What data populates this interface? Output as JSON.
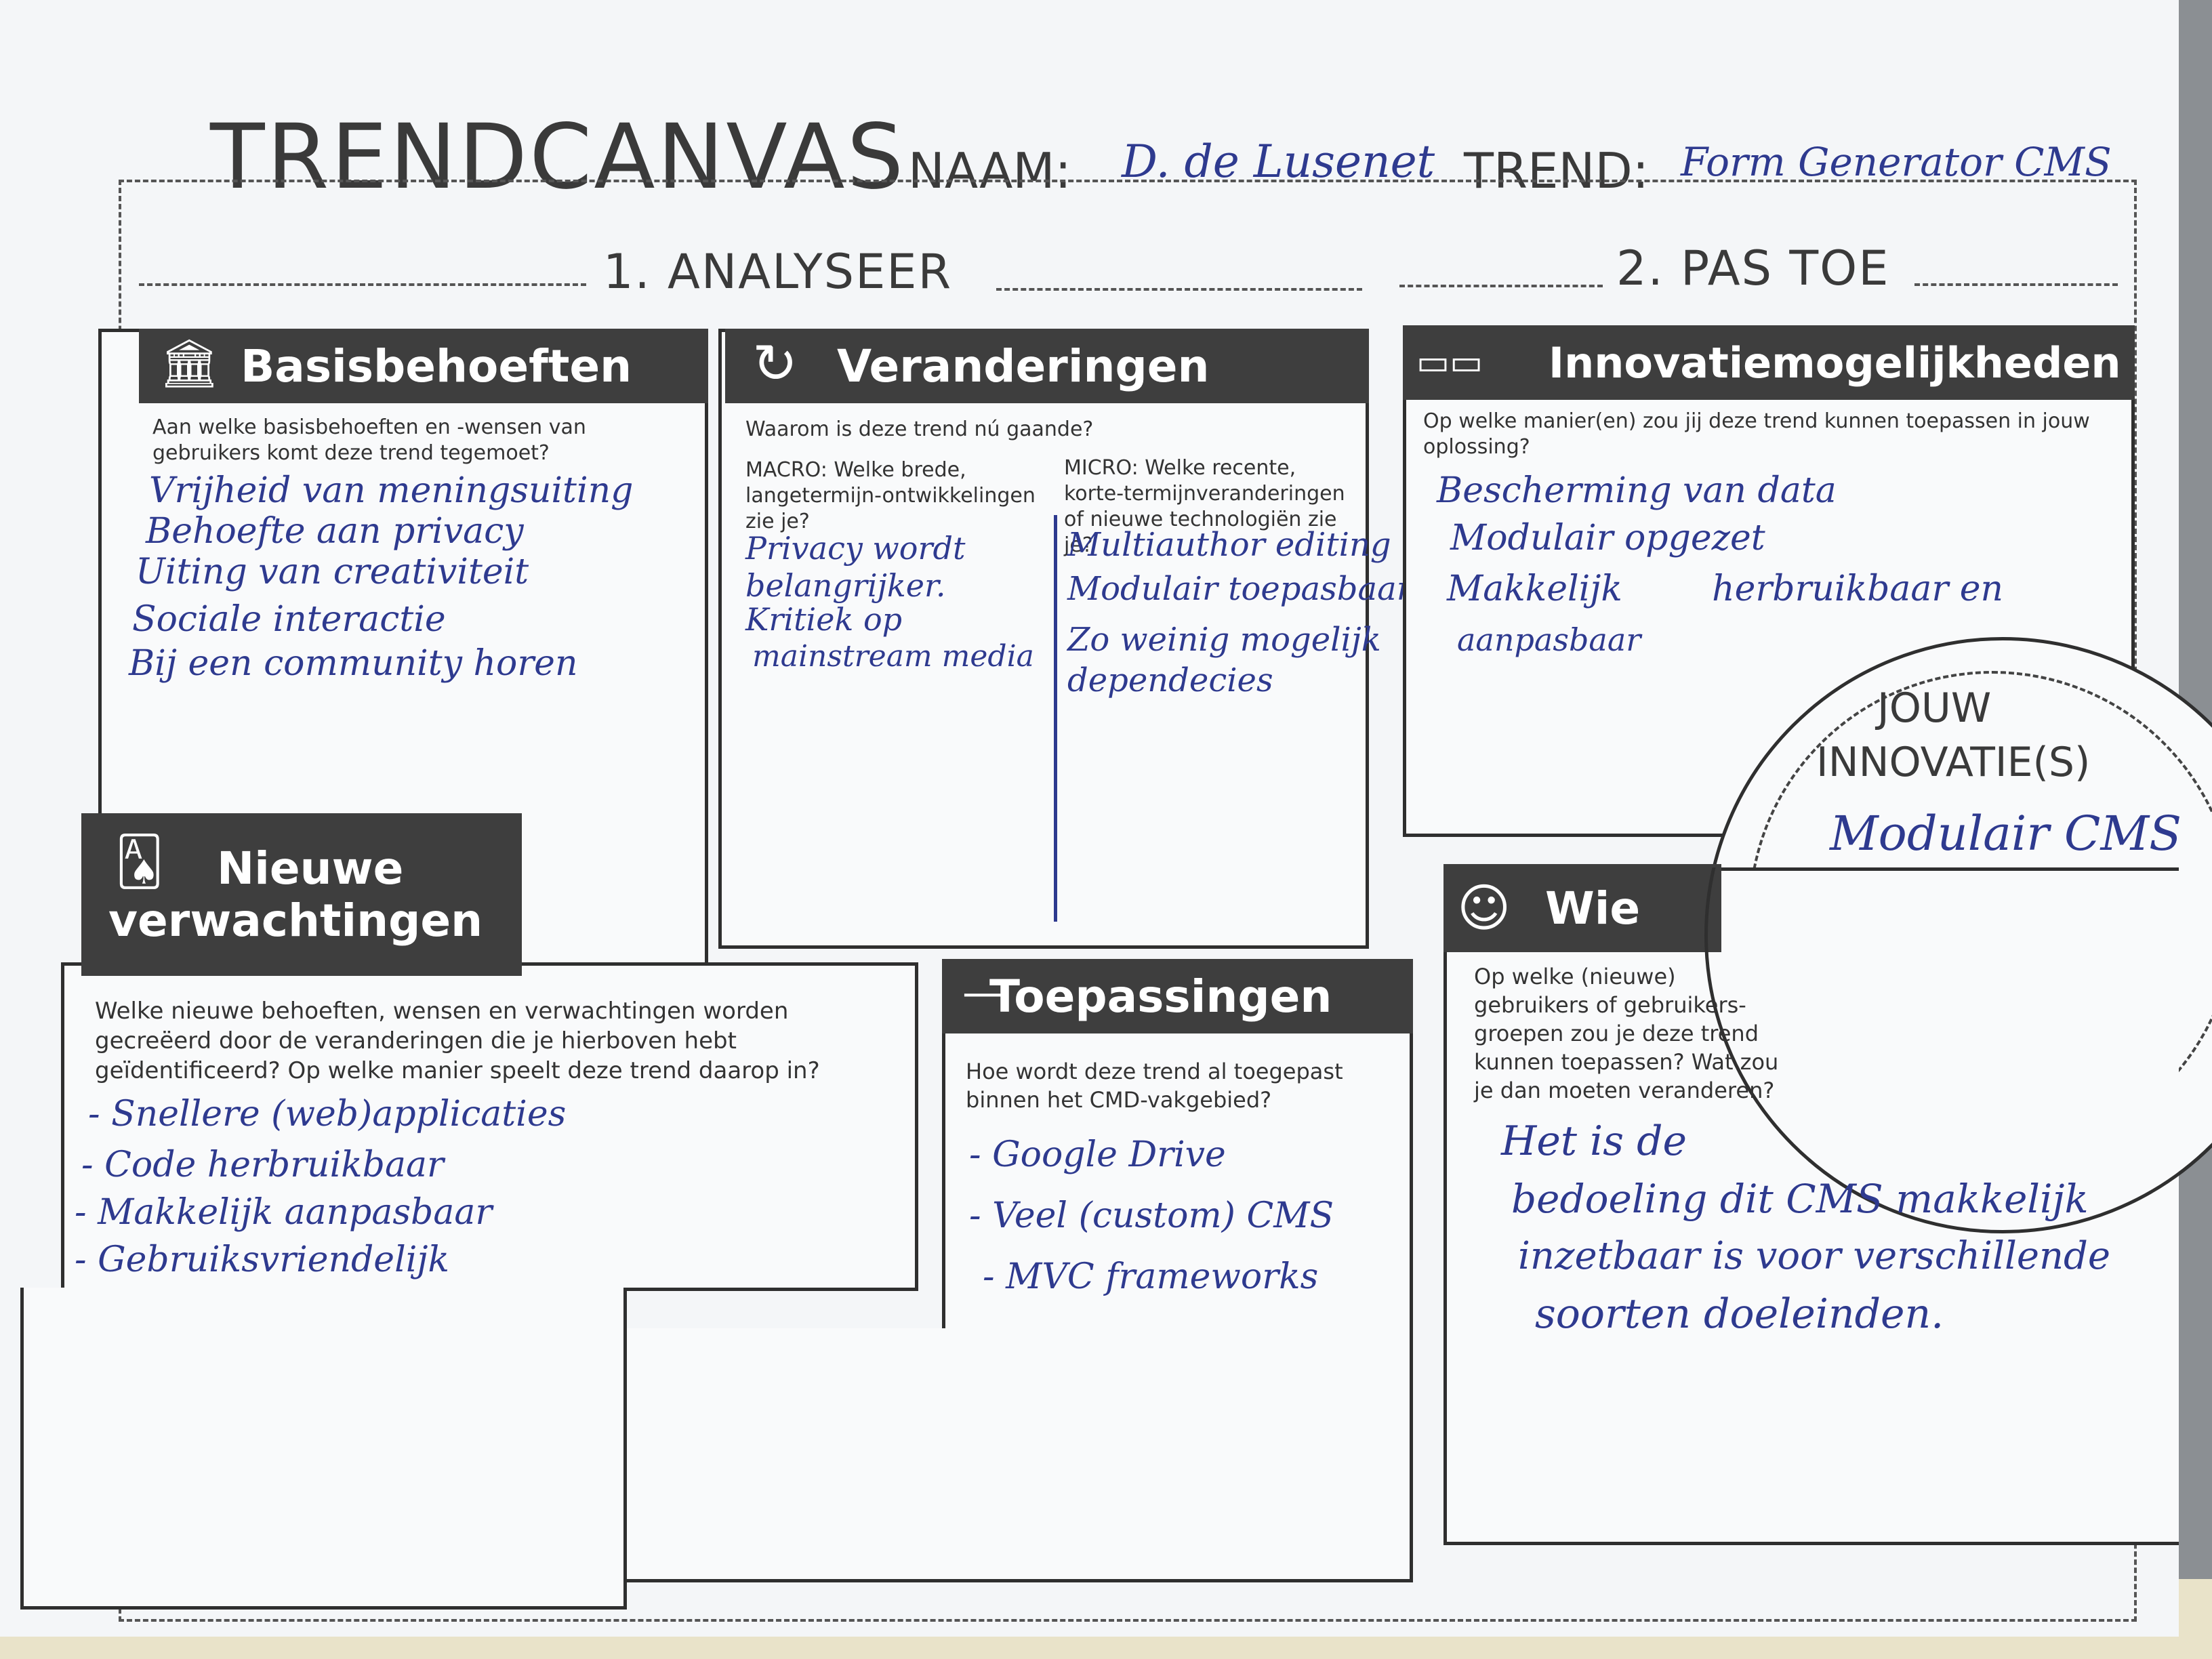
{
  "header": {
    "title": "TRENDCANVAS",
    "name_label": "NAAM:",
    "name_value": "D. de Lusenet",
    "trend_label": "TREND:",
    "trend_value": "Form Generator CMS"
  },
  "sections": {
    "analyse": "1. ANALYSEER",
    "apply": "2. PAS TOE"
  },
  "basisbehoeften": {
    "title": "Basisbehoeften",
    "icon": "building-icon",
    "question": "Aan welke basisbehoeften en -wensen van gebruikers komt deze trend tegemoet?",
    "answers": [
      "Vrijheid van meningsuiting",
      "Behoefte aan privacy",
      "Uiting van creativiteit",
      "Sociale interactie",
      "Bij een community horen"
    ]
  },
  "veranderingen": {
    "title": "Veranderingen",
    "icon": "cycle-icon",
    "question": "Waarom is deze trend nú gaande?",
    "macro_question": "MACRO: Welke brede, langetermijn-ontwikkelingen zie je?",
    "micro_question": "MICRO: Welke recente, korte-termijnveranderingen of nieuwe technologiën zie je?",
    "macro_answers": [
      "Privacy wordt",
      "belangrijker.",
      "Kritiek op",
      "mainstream media"
    ],
    "micro_answers": [
      "Multiauthor editing",
      "Modulair toepasbaar",
      "Zo weinig mogelijk",
      "dependecies"
    ]
  },
  "nieuwe_verwachtingen": {
    "title_line1": "Nieuwe",
    "title_line2": "verwachtingen",
    "icon": "cards-icon",
    "question": "Welke nieuwe behoeften, wensen en verwachtingen worden gecreëerd door de veranderingen die je hierboven hebt geïdentificeerd? Op welke manier speelt deze trend daarop in?",
    "answers": [
      "- Snellere (web)applicaties",
      "- Code herbruikbaar",
      "- Makkelijk aanpasbaar",
      "- Gebruiksvriendelijk"
    ]
  },
  "toepassingen": {
    "title": "Toepassingen",
    "icon": "dash-icon",
    "question": "Hoe wordt deze trend al toegepast binnen het CMD-vakgebied?",
    "answers": [
      "- Google Drive",
      "- Veel (custom) CMS",
      "- MVC frameworks"
    ]
  },
  "innovatie": {
    "title": "Innovatiemogelijkheden",
    "icon": "device-icon",
    "question": "Op welke manier(en) zou jij deze trend kunnen toepassen in jouw oplossing?",
    "answers": [
      "Bescherming van data",
      "Modulair opgezet",
      "Makkelijk        herbruikbaar en",
      "aanpasbaar"
    ]
  },
  "jouw_innovatie": {
    "title_line1": "JOUW",
    "title_line2": "INNOVATIE(S)",
    "answer": "Modulair CMS",
    "icon": "lightbulb-icon"
  },
  "wie": {
    "title": "Wie",
    "icon": "person-icon",
    "question": "Op welke (nieuwe) gebruikers of gebruikers-groepen zou je deze trend kunnen toepassen? Wat zou je dan moeten veranderen?",
    "answers": [
      "Het is de",
      "bedoeling dit CMS makkelijk",
      "inzetbaar is voor verschillende",
      "soorten doeleinden."
    ]
  }
}
